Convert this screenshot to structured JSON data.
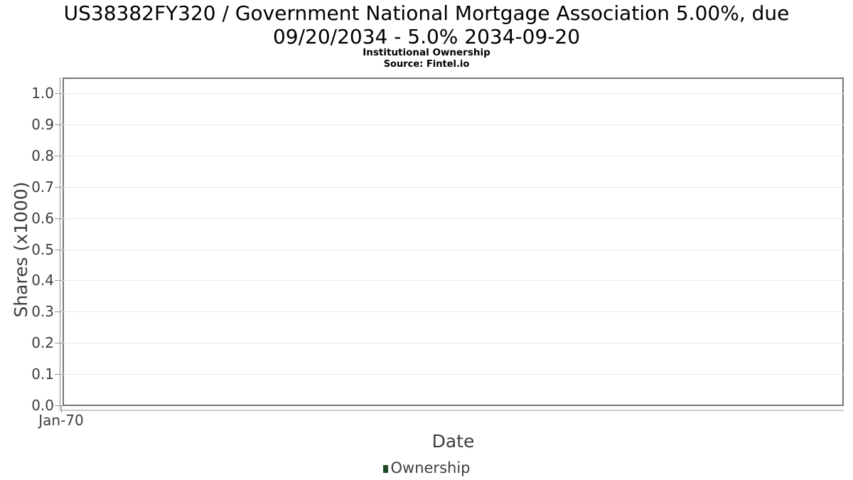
{
  "header": {
    "title_line1": "US38382FY320 / Government National Mortgage Association 5.00%, due",
    "title_line2": "09/20/2034 - 5.0% 2034-09-20",
    "subtitle": "Institutional Ownership",
    "source": "Source: Fintel.io"
  },
  "colors": {
    "background": "#ffffff",
    "title_text": "#000000",
    "axis_text": "#3d3d3d",
    "plot_border": "#767676",
    "gridline": "#e8e8e8",
    "y_axis_line": "#8f8f8f",
    "x_axis_line": "#c9c9c9",
    "tick_mark": "#9b9b9b",
    "legend_marker": "#1e4a26"
  },
  "chart_data": {
    "type": "line",
    "title": "US38382FY320 / Government National Mortgage Association 5.00%, due 09/20/2034 - 5.0% 2034-09-20",
    "subtitle": "Institutional Ownership",
    "source": "Source: Fintel.io",
    "xlabel": "Date",
    "ylabel": "Shares (x1000)",
    "x_tick_labels": [
      "Jan-70"
    ],
    "y_tick_values": [
      0.0,
      0.1,
      0.2,
      0.3,
      0.4,
      0.5,
      0.6,
      0.7,
      0.8,
      0.9,
      1.0
    ],
    "ylim": [
      0.0,
      1.05
    ],
    "grid": "horizontal-only",
    "legend_position": "bottom-center",
    "legend": [
      {
        "label": "Ownership",
        "color": "#1e4a26"
      }
    ],
    "series": [
      {
        "name": "Ownership",
        "points": []
      }
    ]
  }
}
